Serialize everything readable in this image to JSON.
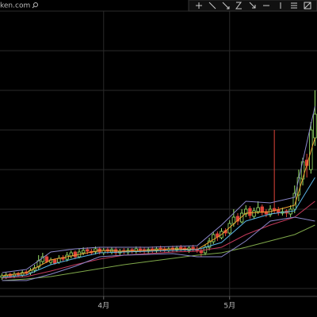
{
  "header_text": "ken.com",
  "chart_data": {
    "type": "candlestick",
    "categories": [
      null,
      null,
      null,
      null,
      null,
      null,
      null,
      null,
      null,
      null,
      null,
      null,
      null,
      null,
      null,
      null,
      null,
      null,
      null,
      null,
      null,
      null,
      null,
      null,
      null,
      "4月",
      null,
      null,
      null,
      null,
      null,
      null,
      null,
      null,
      null,
      null,
      null,
      null,
      null,
      null,
      null,
      null,
      null,
      null,
      null,
      null,
      null,
      null,
      null,
      null,
      null,
      null,
      null,
      null,
      null,
      null,
      "5月",
      null,
      null,
      null,
      null,
      null,
      null,
      null,
      null,
      null,
      null,
      null,
      null,
      null,
      null,
      null,
      null,
      null,
      null,
      null,
      null,
      null
    ],
    "open": [
      24,
      25,
      28,
      26,
      29,
      27,
      31,
      30,
      33,
      37,
      44,
      50,
      43,
      46,
      43,
      49,
      47,
      51,
      56,
      50,
      55,
      59,
      57,
      56,
      60,
      55,
      59,
      56,
      59,
      55,
      58,
      56,
      59,
      57,
      60,
      59,
      57,
      60,
      58,
      61,
      60,
      58,
      61,
      59,
      62,
      61,
      58,
      62,
      60,
      58,
      55,
      62,
      69,
      79,
      74,
      83,
      80,
      92,
      101,
      94,
      104,
      111,
      101,
      107,
      113,
      107,
      103,
      111,
      109,
      105,
      108,
      104,
      110,
      128,
      148,
      172,
      160,
      200
    ],
    "high": [
      29,
      30,
      30,
      31,
      31,
      33,
      33,
      36,
      40,
      52,
      55,
      52,
      49,
      48,
      52,
      52,
      56,
      58,
      58,
      60,
      62,
      62,
      60,
      63,
      62,
      61,
      62,
      62,
      62,
      60,
      61,
      61,
      61,
      63,
      63,
      62,
      62,
      63,
      63,
      64,
      63,
      63,
      64,
      64,
      65,
      64,
      64,
      65,
      63,
      60,
      65,
      74,
      82,
      82,
      86,
      86,
      96,
      110,
      105,
      110,
      115,
      114,
      112,
      120,
      116,
      110,
      115,
      210,
      113,
      112,
      110,
      115,
      140,
      160,
      175,
      180,
      220,
      260
    ],
    "low": [
      21,
      22,
      23,
      23,
      25,
      24,
      27,
      27,
      30,
      34,
      41,
      42,
      40,
      40,
      41,
      44,
      44,
      48,
      47,
      48,
      52,
      53,
      52,
      53,
      53,
      52,
      54,
      53,
      52,
      52,
      53,
      53,
      54,
      54,
      55,
      54,
      54,
      55,
      55,
      56,
      55,
      55,
      56,
      56,
      57,
      56,
      55,
      57,
      55,
      50,
      52,
      58,
      66,
      70,
      72,
      76,
      78,
      88,
      90,
      92,
      100,
      98,
      98,
      104,
      102,
      100,
      100,
      104,
      102,
      102,
      100,
      100,
      105,
      120,
      140,
      150,
      155,
      190
    ],
    "close": [
      26,
      27,
      25,
      28,
      27,
      30,
      29,
      33,
      36,
      45,
      50,
      44,
      46,
      42,
      48,
      47,
      52,
      55,
      50,
      56,
      58,
      57,
      55,
      60,
      56,
      58,
      57,
      59,
      55,
      57,
      56,
      58,
      57,
      60,
      58,
      57,
      59,
      58,
      60,
      59,
      58,
      60,
      59,
      61,
      60,
      59,
      61,
      60,
      58,
      55,
      62,
      70,
      78,
      75,
      82,
      80,
      92,
      100,
      95,
      105,
      110,
      102,
      108,
      112,
      106,
      104,
      110,
      108,
      106,
      107,
      105,
      110,
      130,
      150,
      170,
      165,
      210,
      230
    ],
    "up_color": "#9be36a",
    "down_color": "#e0443a",
    "ylim": [
      0,
      374
    ],
    "ygrid": [
      10,
      60,
      110,
      160,
      210,
      260,
      310,
      360
    ],
    "overlays": {
      "x": [
        0,
        6,
        12,
        18,
        24,
        30,
        36,
        42,
        48,
        54,
        60,
        66,
        72,
        77
      ],
      "series": [
        {
          "color": "#f0a030",
          "values": [
            26,
            30,
            46,
            52,
            58,
            57,
            58,
            60,
            59,
            78,
            105,
            107,
            115,
            200
          ]
        },
        {
          "color": "#5ab4e6",
          "values": [
            24,
            27,
            40,
            48,
            55,
            56,
            57,
            58,
            59,
            68,
            95,
            104,
            108,
            150
          ]
        },
        {
          "color": "#c0395a",
          "values": [
            23,
            25,
            32,
            40,
            47,
            52,
            54,
            56,
            57,
            62,
            78,
            90,
            100,
            120
          ]
        },
        {
          "color": "#7fa84a",
          "values": [
            20,
            22,
            25,
            30,
            35,
            40,
            44,
            48,
            52,
            55,
            62,
            70,
            78,
            90
          ]
        },
        {
          "color": "#8a86c8",
          "values": [
            30,
            34,
            56,
            60,
            62,
            62,
            62,
            63,
            64,
            90,
            120,
            118,
            125,
            240
          ]
        },
        {
          "color": "#8a86c8",
          "values": [
            20,
            20,
            28,
            38,
            50,
            52,
            53,
            54,
            50,
            50,
            70,
            95,
            100,
            95
          ]
        }
      ]
    }
  }
}
